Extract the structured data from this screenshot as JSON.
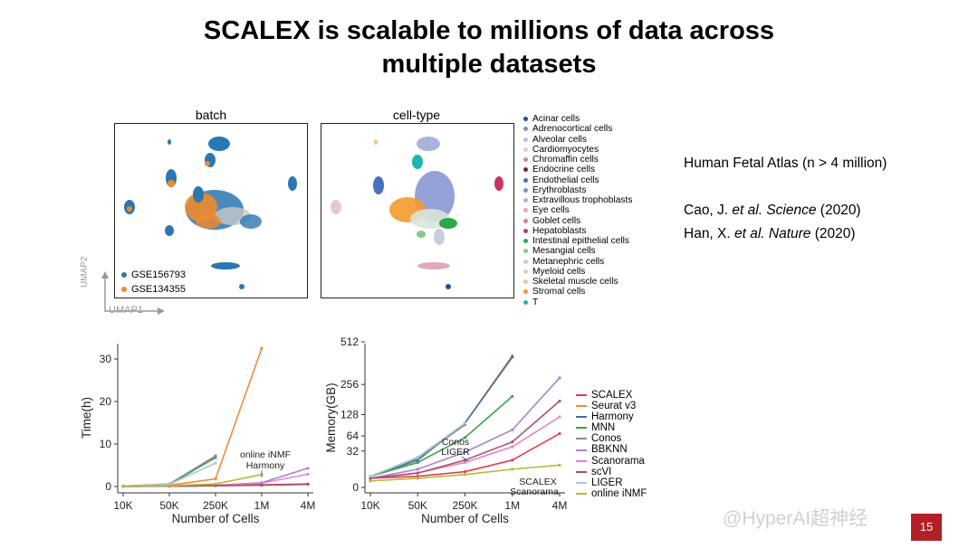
{
  "slide": {
    "title_line1": "SCALEX is scalable to millions of data across",
    "title_line2": "multiple datasets",
    "page_number": "15",
    "watermark": "@HyperAI超神经"
  },
  "info": {
    "line1": "Human Fetal Atlas (n > 4 million)",
    "cite1_author": "Cao, J. ",
    "cite1_journal": "et al. Science",
    "cite1_year": " (2020)",
    "cite2_author": "Han, X. ",
    "cite2_journal": "et al. Nature",
    "cite2_year": " (2020)"
  },
  "umap": {
    "batch_title": "batch",
    "celltype_title": "cell-type",
    "axis_x": "UMAP1",
    "axis_y": "UMAP2",
    "batch_legend": [
      {
        "label": "GSE156793",
        "color": "#2a77b3"
      },
      {
        "label": "GSE134355",
        "color": "#f08a2c"
      }
    ],
    "celltype_legend": [
      {
        "label": "Acinar cells",
        "color": "#1f4e9c"
      },
      {
        "label": "Adrenocortical cells",
        "color": "#7f8fd0"
      },
      {
        "label": "Alveolar cells",
        "color": "#b9c0d8"
      },
      {
        "label": "Cardiomyocytes",
        "color": "#e8c9c9"
      },
      {
        "label": "Chromaffin cells",
        "color": "#c98a8a"
      },
      {
        "label": "Endocrine cells",
        "color": "#8a1f3c"
      },
      {
        "label": "Endothelial cells",
        "color": "#4a6ec0"
      },
      {
        "label": "Erythroblasts",
        "color": "#7d94d4"
      },
      {
        "label": "Extravillous trophoblasts",
        "color": "#a8b4dc"
      },
      {
        "label": "Eye cells",
        "color": "#e8a9b8"
      },
      {
        "label": "Goblet cells",
        "color": "#e07a9c"
      },
      {
        "label": "Hepatoblasts",
        "color": "#c8355e"
      },
      {
        "label": "Intestinal epithelial cells",
        "color": "#2aa84a"
      },
      {
        "label": "Mesangial cells",
        "color": "#86c98a"
      },
      {
        "label": "Metanephric cells",
        "color": "#b9dcb9"
      },
      {
        "label": "Myeloid cells",
        "color": "#d4d4d4"
      },
      {
        "label": "Skeletal muscle cells",
        "color": "#f5c28a"
      },
      {
        "label": "Stromal cells",
        "color": "#f39a2c"
      },
      {
        "label": "T",
        "color": "#1fb5b0"
      }
    ]
  },
  "methods_legend": [
    {
      "label": "SCALEX",
      "color": "#e0404a"
    },
    {
      "label": "Seurat v3",
      "color": "#f08a3c"
    },
    {
      "label": "Harmony",
      "color": "#3a6ea8"
    },
    {
      "label": "MNN",
      "color": "#3aa24a"
    },
    {
      "label": "Conos",
      "color": "#8c8c8c"
    },
    {
      "label": "BBKNN",
      "color": "#a884d0"
    },
    {
      "label": "Scanorama",
      "color": "#e884c8"
    },
    {
      "label": "scVI",
      "color": "#a8526a"
    },
    {
      "label": "LIGER",
      "color": "#a8c8e0"
    },
    {
      "label": "online iNMF",
      "color": "#b8b83a"
    }
  ],
  "chart_data": [
    {
      "type": "line",
      "title": "",
      "xlabel": "Number of Cells",
      "ylabel": "Time(h)",
      "categories": [
        "10K",
        "50K",
        "250K",
        "1M",
        "4M"
      ],
      "yticks": [
        "0",
        "10",
        "20",
        "30"
      ],
      "ylim": [
        -1,
        34
      ],
      "annotations": [
        "online iNMF",
        "Harmony"
      ],
      "series": [
        {
          "name": "SCALEX",
          "color": "#e0404a",
          "values": [
            0.05,
            0.1,
            0.2,
            0.3,
            0.5
          ]
        },
        {
          "name": "Seurat v3",
          "color": "#f08a3c",
          "values": [
            0.1,
            0.3,
            1.8,
            32.5,
            null
          ]
        },
        {
          "name": "Harmony",
          "color": "#3a6ea8",
          "values": [
            0.05,
            0.1,
            0.2,
            0.6,
            null
          ]
        },
        {
          "name": "MNN",
          "color": "#3aa24a",
          "values": [
            0.1,
            0.5,
            6.8,
            null,
            null
          ]
        },
        {
          "name": "Conos",
          "color": "#8c8c8c",
          "values": [
            0.1,
            0.6,
            7.2,
            null,
            null
          ]
        },
        {
          "name": "BBKNN",
          "color": "#a884d0",
          "values": [
            0.05,
            0.1,
            0.3,
            0.9,
            4.3
          ]
        },
        {
          "name": "Scanorama",
          "color": "#e884c8",
          "values": [
            0.05,
            0.1,
            0.3,
            0.8,
            2.9
          ]
        },
        {
          "name": "scVI",
          "color": "#a8526a",
          "values": [
            0.05,
            0.1,
            0.2,
            0.4,
            0.6
          ]
        },
        {
          "name": "LIGER",
          "color": "#a8c8e0",
          "values": [
            0.1,
            0.5,
            5.5,
            null,
            null
          ]
        },
        {
          "name": "online iNMF",
          "color": "#b8b83a",
          "values": [
            0.1,
            0.2,
            0.6,
            2.8,
            null
          ]
        }
      ]
    },
    {
      "type": "line",
      "title": "",
      "xlabel": "Number of Cells",
      "ylabel": "Memory(GB)",
      "categories": [
        "10K",
        "50K",
        "250K",
        "1M",
        "4M"
      ],
      "yticks": [
        "0",
        "32",
        "64",
        "128",
        "256",
        "512"
      ],
      "yscale": "sqrt",
      "ylim": [
        0,
        512
      ],
      "annotations": [
        "Conos",
        "LIGER",
        "SCALEX",
        "Scanorama"
      ],
      "series": [
        {
          "name": "SCALEX",
          "color": "#e0404a",
          "values": [
            2,
            3,
            6,
            18,
            70
          ]
        },
        {
          "name": "Seurat v3",
          "color": "#f08a3c",
          "values": [
            3,
            18,
            100,
            420,
            null
          ]
        },
        {
          "name": "Harmony",
          "color": "#3a6ea8",
          "values": [
            3,
            18,
            100,
            410,
            null
          ]
        },
        {
          "name": "MNN",
          "color": "#3aa24a",
          "values": [
            3,
            15,
            60,
            200,
            null
          ]
        },
        {
          "name": "Conos",
          "color": "#8c8c8c",
          "values": [
            3,
            20,
            95,
            null,
            null
          ]
        },
        {
          "name": "BBKNN",
          "color": "#a884d0",
          "values": [
            2,
            8,
            30,
            80,
            290
          ]
        },
        {
          "name": "Scanorama",
          "color": "#e884c8",
          "values": [
            2,
            5,
            15,
            40,
            120
          ]
        },
        {
          "name": "scVI",
          "color": "#a8526a",
          "values": [
            2,
            5,
            18,
            50,
            180
          ]
        },
        {
          "name": "LIGER",
          "color": "#a8c8e0",
          "values": [
            3,
            22,
            100,
            null,
            null
          ]
        },
        {
          "name": "online iNMF",
          "color": "#b8b83a",
          "values": [
            1,
            2,
            4,
            8,
            12
          ]
        }
      ]
    }
  ]
}
